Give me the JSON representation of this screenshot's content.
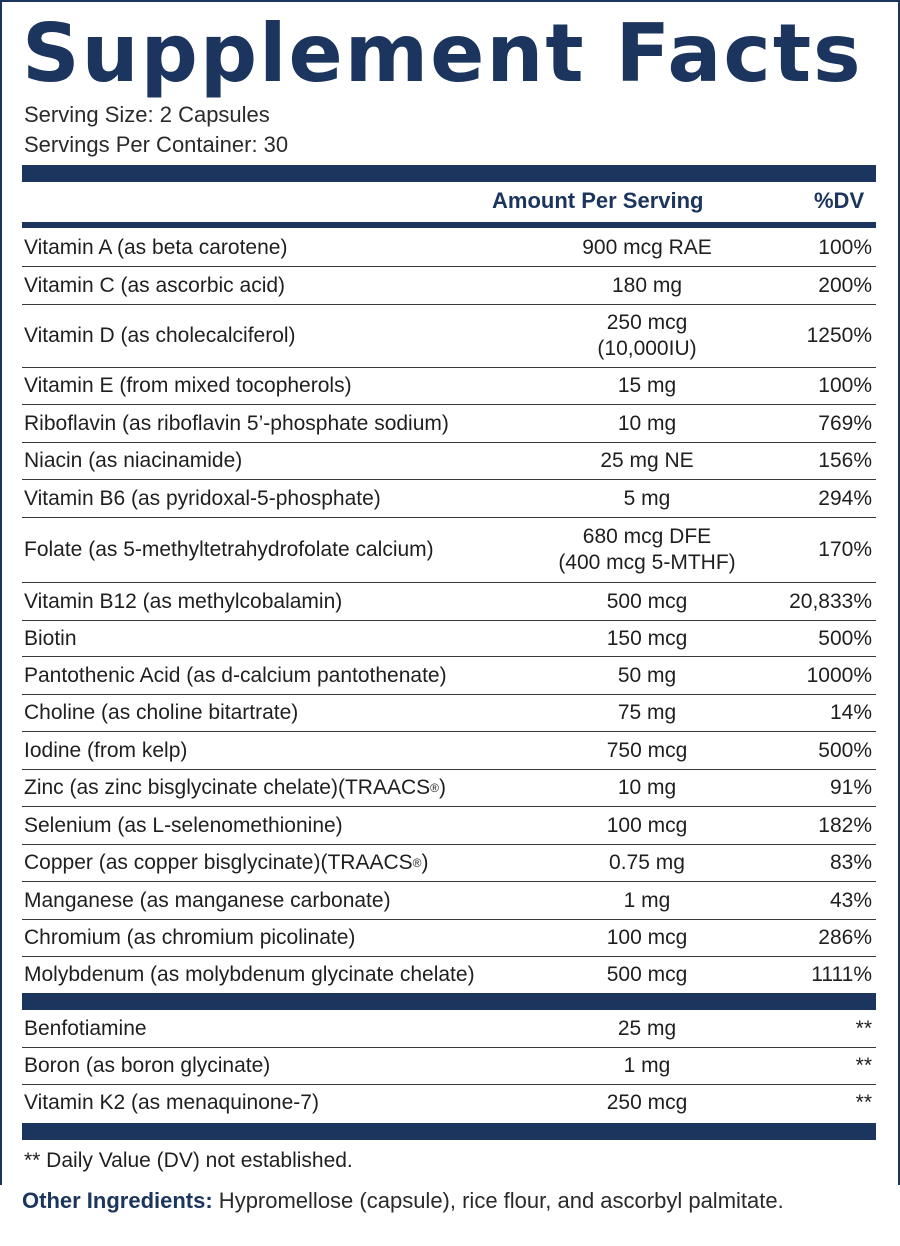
{
  "title": "Supplement Facts",
  "serving_size": "Serving Size: 2 Capsules",
  "servings_per_container": "Servings Per Container: 30",
  "header": {
    "amount": "Amount Per Serving",
    "dv": "%DV"
  },
  "nutrients": [
    {
      "name": "Vitamin A (as beta carotene)",
      "amount": "900 mcg RAE",
      "dv": "100%"
    },
    {
      "name": "Vitamin C (as ascorbic acid)",
      "amount": "180 mg",
      "dv": "200%"
    },
    {
      "name": "Vitamin D (as cholecalciferol)",
      "amount": "250 mcg\n(10,000IU)",
      "dv": "1250%"
    },
    {
      "name": "Vitamin E (from mixed tocopherols)",
      "amount": "15 mg",
      "dv": "100%"
    },
    {
      "name": "Riboflavin (as riboflavin 5’-phosphate sodium)",
      "amount": "10 mg",
      "dv": "769%"
    },
    {
      "name": "Niacin (as niacinamide)",
      "amount": "25 mg NE",
      "dv": "156%"
    },
    {
      "name": "Vitamin B6 (as pyridoxal-5-phosphate)",
      "amount": "5 mg",
      "dv": "294%"
    },
    {
      "name": "Folate (as 5-methyltetrahydrofolate calcium)",
      "amount": "680 mcg DFE\n(400 mcg 5-MTHF)",
      "dv": "170%"
    },
    {
      "name": "Vitamin B12 (as methylcobalamin)",
      "amount": "500 mcg",
      "dv": "20,833%"
    },
    {
      "name": "Biotin",
      "amount": "150 mcg",
      "dv": "500%"
    },
    {
      "name": "Pantothenic Acid (as d-calcium pantothenate)",
      "amount": "50 mg",
      "dv": "1000%"
    },
    {
      "name": "Choline (as choline bitartrate)",
      "amount": "75 mg",
      "dv": "14%"
    },
    {
      "name": "Iodine (from kelp)",
      "amount": "750 mcg",
      "dv": "500%"
    },
    {
      "name": "Zinc (as zinc bisglycinate chelate)(TRAACS",
      "name_sup": "®",
      "name_end": ")",
      "amount": "10 mg",
      "dv": "91%"
    },
    {
      "name": "Selenium (as L-selenomethionine)",
      "amount": "100 mcg",
      "dv": "182%"
    },
    {
      "name": "Copper (as copper bisglycinate)(TRAACS",
      "name_sup": "®",
      "name_end": ")",
      "amount": "0.75 mg",
      "dv": "83%"
    },
    {
      "name": "Manganese (as manganese carbonate)",
      "amount": "1 mg",
      "dv": "43%"
    },
    {
      "name": "Chromium (as chromium picolinate)",
      "amount": "100 mcg",
      "dv": "286%"
    },
    {
      "name": "Molybdenum (as molybdenum glycinate chelate)",
      "amount": "500 mcg",
      "dv": "1111%"
    }
  ],
  "other_nutrients": [
    {
      "name": "Benfotiamine",
      "amount": "25 mg",
      "dv": "**"
    },
    {
      "name": "Boron (as boron glycinate)",
      "amount": "1 mg",
      "dv": "**"
    },
    {
      "name": "Vitamin K2 (as menaquinone-7)",
      "amount": "250 mcg",
      "dv": "**"
    }
  ],
  "footnote": "** Daily Value (DV) not established.",
  "other_ingredients_label": "Other Ingredients:",
  "other_ingredients_text": " Hypromellose (capsule), rice flour, and ascorbyl palmitate.",
  "colors": {
    "navy": "#1c355e",
    "text": "#1f1f1f"
  }
}
